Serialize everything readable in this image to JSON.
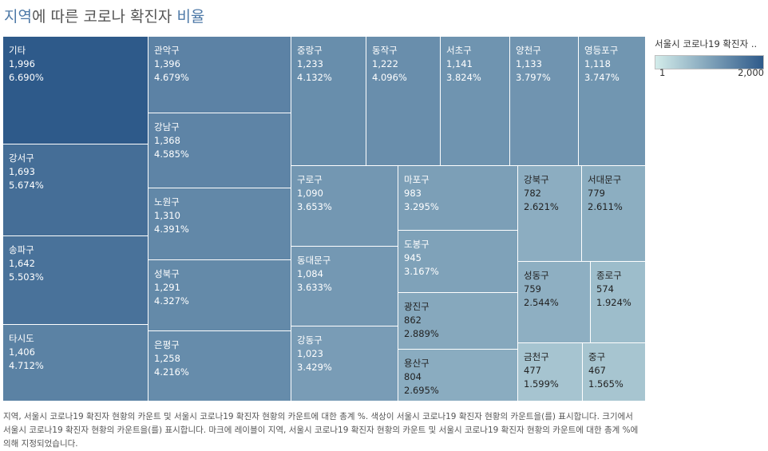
{
  "title": {
    "part1": "지역",
    "part2": "에 따른 코로나 확진자 ",
    "part3": "비율"
  },
  "legend": {
    "title": "서울시 코로나19 확진자 ..",
    "min_label": "1",
    "max_label": "2,000",
    "color_low": "#d3ecea",
    "color_high": "#2e5a8a"
  },
  "caption": "지역, 서울시 코로나19 확진자 현황의 카운트 및 서울시 코로나19 확진자 현황의 카운트에 대한 총계 %.  색상이 서울시 코로나19 확진자 현황의 카운트을(를) 표시합니다. 크기에서 서울시 코로나19 확진자 현황의 카운트을(를) 표시합니다. 마크에 레이블이 지역, 서울시 코로나19 확진자 현황의 카운트 및 서울시 코로나19 확진자 현황의 카운트에 대한 총계 %에 의해 지정되었습니다.",
  "chart_data": {
    "type": "treemap",
    "color_range": [
      1,
      2000
    ],
    "items": [
      {
        "label": "기타",
        "value": 1996,
        "value_label": "1,996",
        "pct": "6.690%"
      },
      {
        "label": "강서구",
        "value": 1693,
        "value_label": "1,693",
        "pct": "5.674%"
      },
      {
        "label": "송파구",
        "value": 1642,
        "value_label": "1,642",
        "pct": "5.503%"
      },
      {
        "label": "타시도",
        "value": 1406,
        "value_label": "1,406",
        "pct": "4.712%"
      },
      {
        "label": "관악구",
        "value": 1396,
        "value_label": "1,396",
        "pct": "4.679%"
      },
      {
        "label": "강남구",
        "value": 1368,
        "value_label": "1,368",
        "pct": "4.585%"
      },
      {
        "label": "노원구",
        "value": 1310,
        "value_label": "1,310",
        "pct": "4.391%"
      },
      {
        "label": "성북구",
        "value": 1291,
        "value_label": "1,291",
        "pct": "4.327%"
      },
      {
        "label": "은평구",
        "value": 1258,
        "value_label": "1,258",
        "pct": "4.216%"
      },
      {
        "label": "중랑구",
        "value": 1233,
        "value_label": "1,233",
        "pct": "4.132%"
      },
      {
        "label": "동작구",
        "value": 1222,
        "value_label": "1,222",
        "pct": "4.096%"
      },
      {
        "label": "서초구",
        "value": 1141,
        "value_label": "1,141",
        "pct": "3.824%"
      },
      {
        "label": "양천구",
        "value": 1133,
        "value_label": "1,133",
        "pct": "3.797%"
      },
      {
        "label": "영등포구",
        "value": 1118,
        "value_label": "1,118",
        "pct": "3.747%"
      },
      {
        "label": "구로구",
        "value": 1090,
        "value_label": "1,090",
        "pct": "3.653%"
      },
      {
        "label": "동대문구",
        "value": 1084,
        "value_label": "1,084",
        "pct": "3.633%"
      },
      {
        "label": "강동구",
        "value": 1023,
        "value_label": "1,023",
        "pct": "3.429%"
      },
      {
        "label": "마포구",
        "value": 983,
        "value_label": "983",
        "pct": "3.295%"
      },
      {
        "label": "도봉구",
        "value": 945,
        "value_label": "945",
        "pct": "3.167%"
      },
      {
        "label": "광진구",
        "value": 862,
        "value_label": "862",
        "pct": "2.889%"
      },
      {
        "label": "용산구",
        "value": 804,
        "value_label": "804",
        "pct": "2.695%"
      },
      {
        "label": "강북구",
        "value": 782,
        "value_label": "782",
        "pct": "2.621%"
      },
      {
        "label": "서대문구",
        "value": 779,
        "value_label": "779",
        "pct": "2.611%"
      },
      {
        "label": "성동구",
        "value": 759,
        "value_label": "759",
        "pct": "2.544%"
      },
      {
        "label": "종로구",
        "value": 574,
        "value_label": "574",
        "pct": "1.924%"
      },
      {
        "label": "금천구",
        "value": 477,
        "value_label": "477",
        "pct": "1.599%"
      },
      {
        "label": "중구",
        "value": 467,
        "value_label": "467",
        "pct": "1.565%"
      }
    ]
  }
}
